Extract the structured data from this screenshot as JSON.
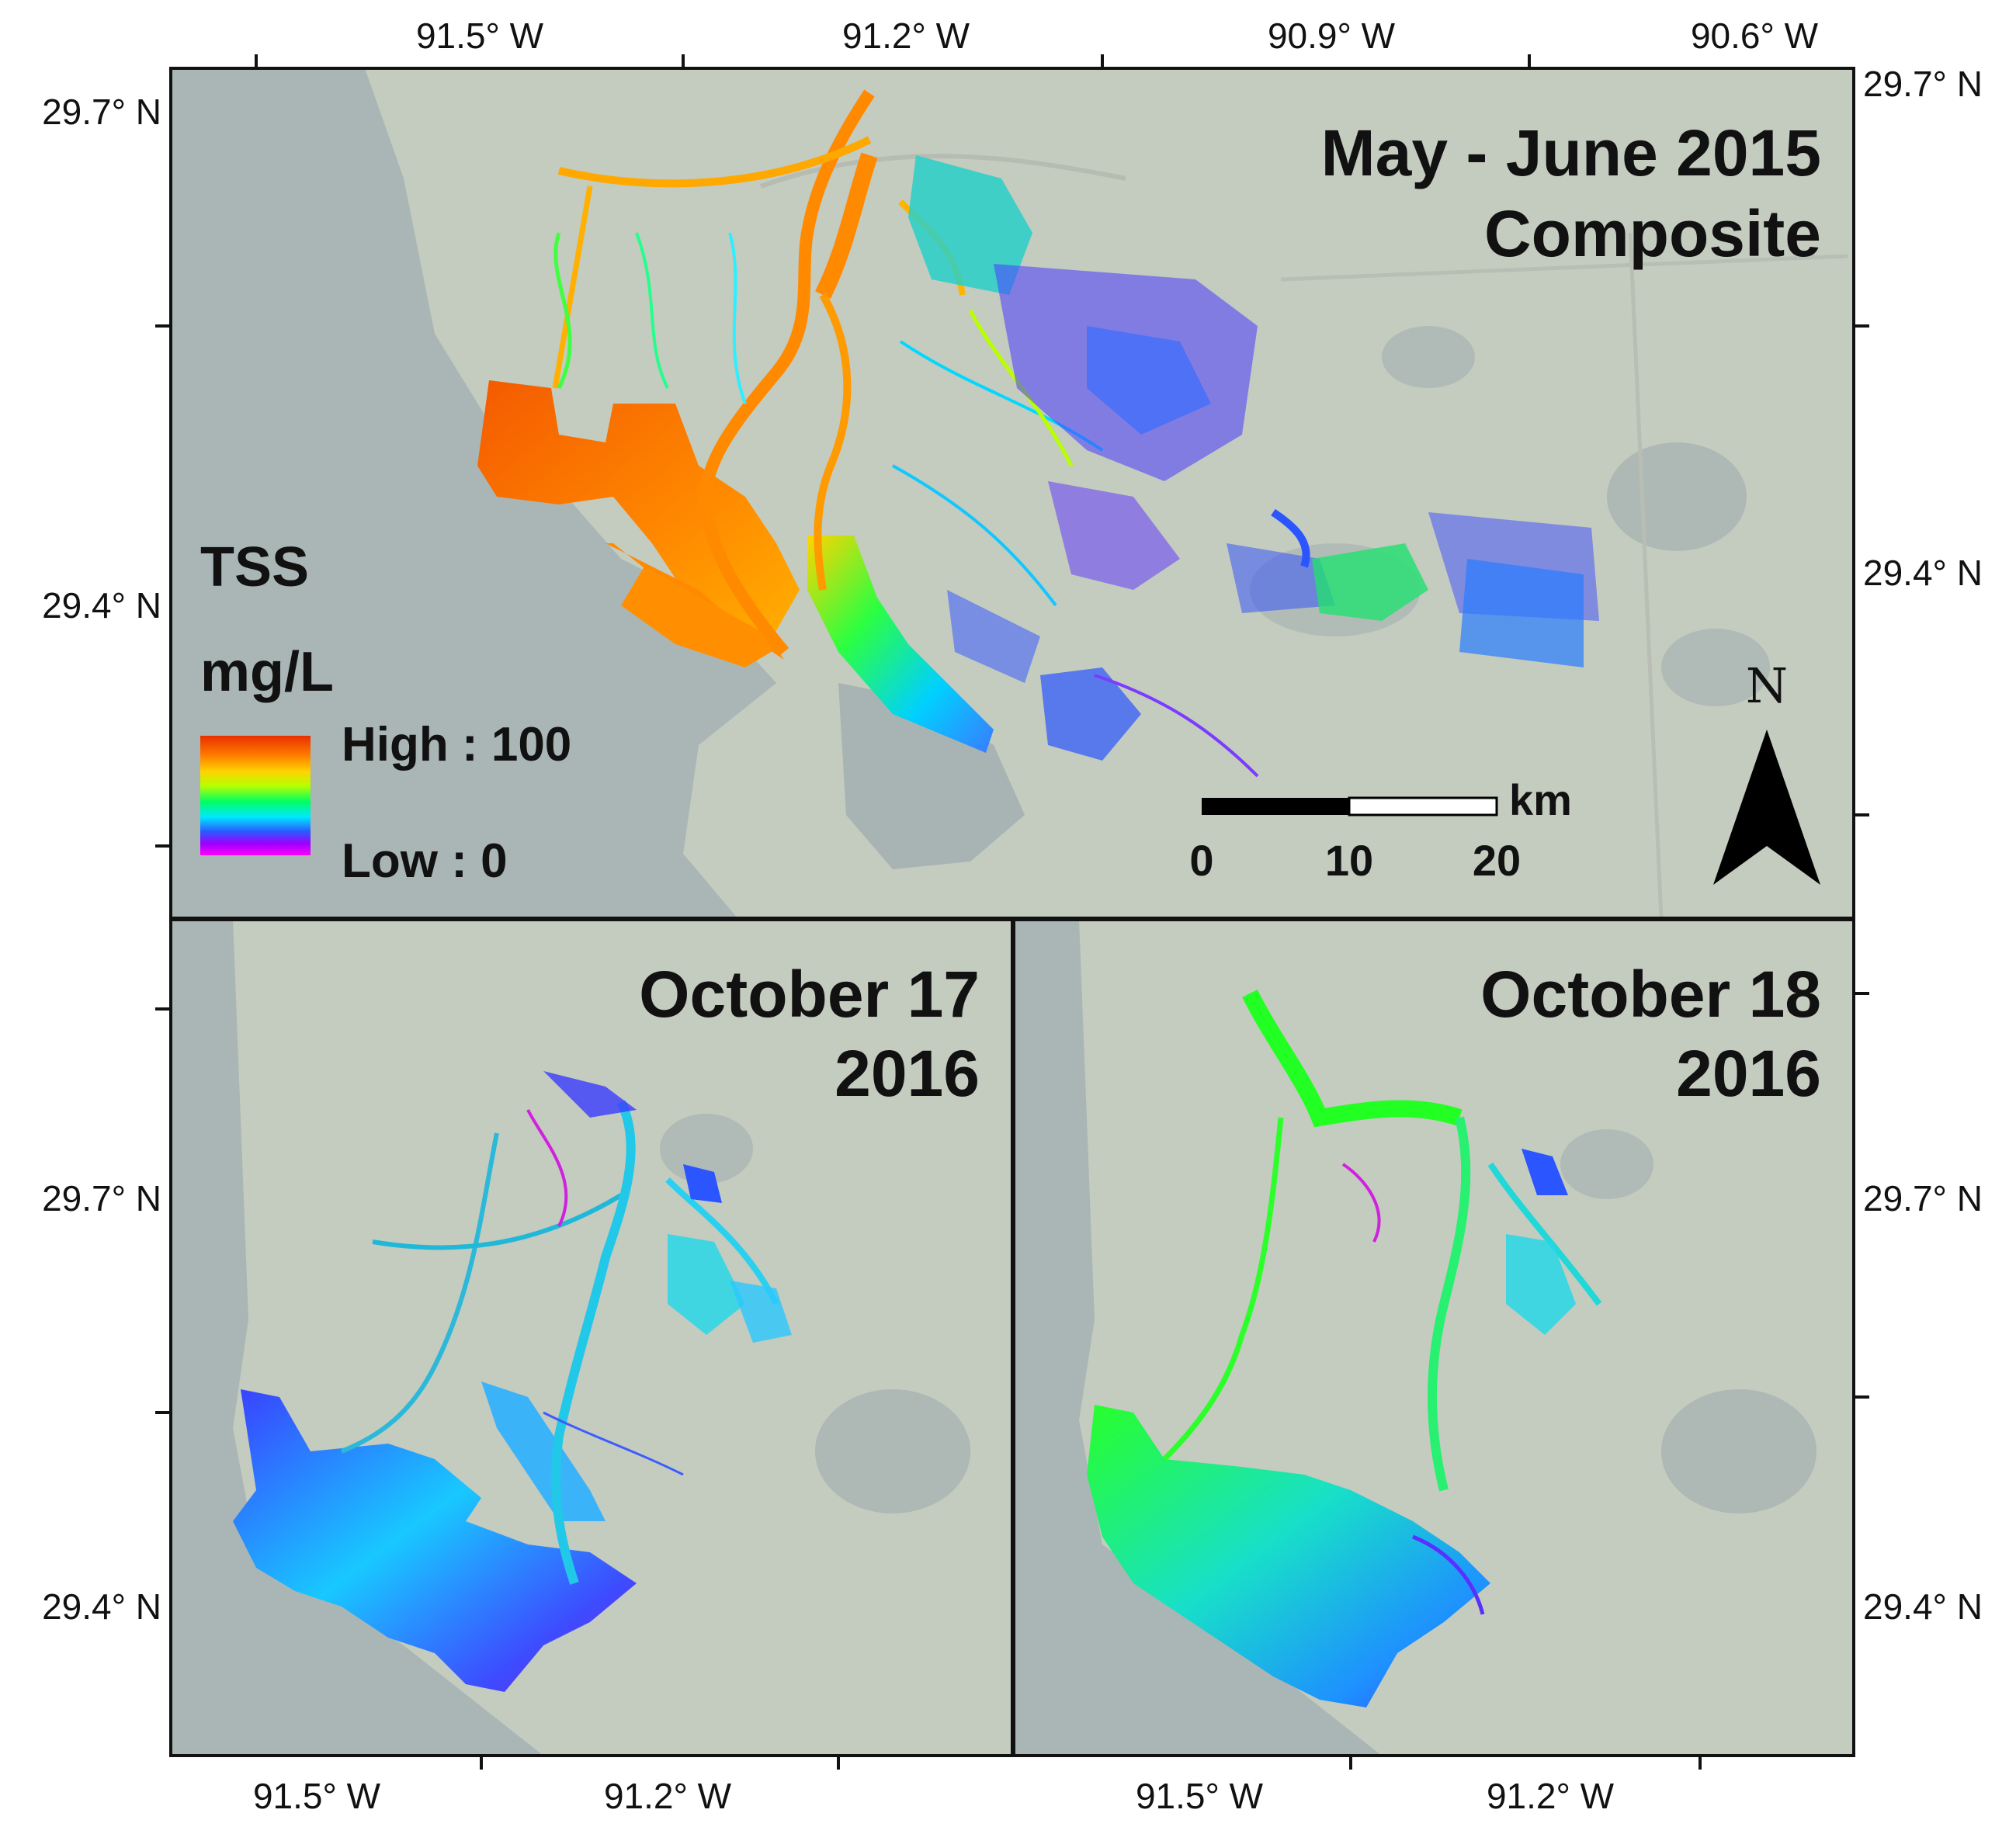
{
  "top_axis_labels": [
    "91.5° W",
    "91.2° W",
    "90.9° W",
    "90.6° W"
  ],
  "top_left_lat_labels": [
    "29.7° N",
    "29.4° N"
  ],
  "top_right_lat_labels": [
    "29.7° N",
    "29.4° N"
  ],
  "bottom_left_lat_labels": [
    "29.7° N",
    "29.4° N"
  ],
  "bottom_right_lat_labels": [
    "29.7° N",
    "29.4° N"
  ],
  "bottom_axis_left_labels": [
    "91.5° W",
    "91.2° W"
  ],
  "bottom_axis_right_labels": [
    "91.5° W",
    "91.2° W"
  ],
  "panels": {
    "top": {
      "title_line1": "May - June 2015",
      "title_line2": "Composite"
    },
    "bottom_left": {
      "title_line1": "October 17",
      "title_line2": "2016"
    },
    "bottom_right": {
      "title_line1": "October 18",
      "title_line2": "2016"
    }
  },
  "legend": {
    "title": "TSS",
    "unit": "mg/L",
    "high_label": "High : 100",
    "low_label": "Low : 0",
    "gradient_colors": [
      "#e83000",
      "#ff7a00",
      "#ffd400",
      "#b6ff00",
      "#00ff60",
      "#00e8ff",
      "#2a5bff",
      "#9b00ff",
      "#ff00ff"
    ]
  },
  "scale_bar": {
    "unit": "km",
    "ticks": [
      "0",
      "10",
      "20"
    ]
  },
  "north_arrow": {
    "label": "N"
  },
  "colors": {
    "water": "#a9b7b6",
    "land": "#c6cdc0",
    "high_tss": "#f07400",
    "low_tss": "#2a55ff"
  }
}
